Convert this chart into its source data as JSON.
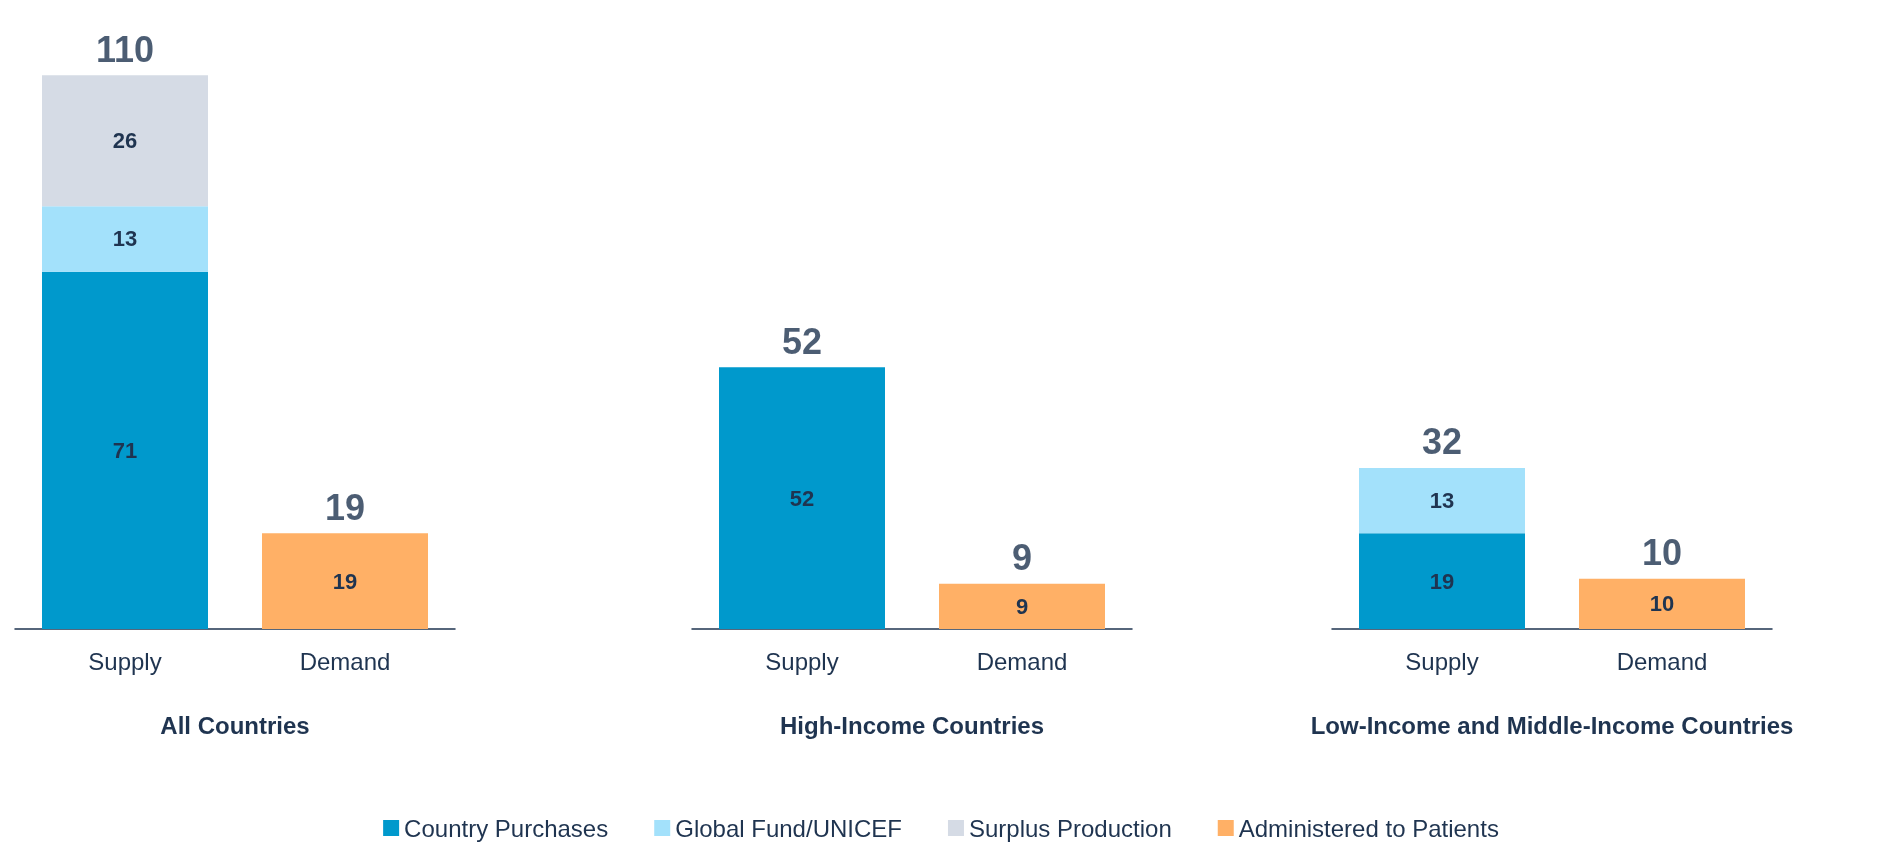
{
  "chart_data": {
    "type": "bar",
    "stacked": true,
    "data_labels": true,
    "legend": "bottom",
    "categories": [
      "Supply",
      "Demand",
      "Supply",
      "Demand",
      "Supply",
      "Demand"
    ],
    "series": [
      {
        "name": "Country Purchases",
        "color": "#0099cc",
        "values": [
          71,
          null,
          52,
          null,
          19,
          null
        ]
      },
      {
        "name": "Global Fund/UNICEF",
        "color": "#a3e1fb",
        "values": [
          13,
          null,
          null,
          null,
          13,
          null
        ]
      },
      {
        "name": "Surplus Production",
        "color": "#d5dbe5",
        "values": [
          26,
          null,
          null,
          null,
          null,
          null
        ]
      },
      {
        "name": "Administered to Patients",
        "color": "#ffb066",
        "values": [
          null,
          19,
          null,
          9,
          null,
          10
        ]
      }
    ],
    "totals": [
      "110",
      "19",
      "52",
      "9",
      "32",
      "10"
    ],
    "annotations": [
      "All Countries",
      "High-Income Countries",
      "Low-Income and Middle-Income Countries"
    ]
  }
}
